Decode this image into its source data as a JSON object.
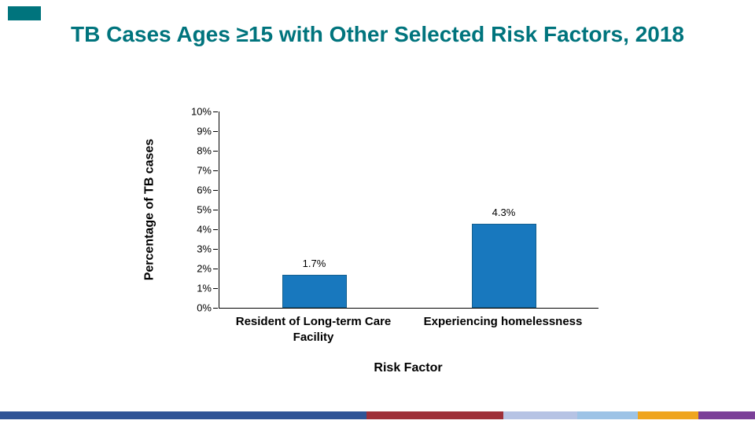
{
  "slide": {
    "title": "TB Cases Ages ≥15 with Other Selected Risk Factors, 2018"
  },
  "chart_data": {
    "type": "bar",
    "title": "TB Cases Ages ≥15 with Other Selected Risk Factors, 2018",
    "categories": [
      "Resident of Long-term Care Facility",
      "Experiencing homelessness"
    ],
    "values": [
      1.7,
      4.3
    ],
    "value_labels": [
      "1.7%",
      "4.3%"
    ],
    "xlabel": "Risk Factor",
    "ylabel": "Percentage of TB cases",
    "ylim": [
      0,
      10
    ],
    "y_ticks": [
      "0%",
      "1%",
      "2%",
      "3%",
      "4%",
      "5%",
      "6%",
      "7%",
      "8%",
      "9%",
      "10%"
    ],
    "grid": false,
    "legend": false,
    "bar_color": "#1878BE"
  },
  "theme": {
    "title_color": "#00747D",
    "accent_color": "#00747D",
    "footer_stripe": [
      {
        "color": "#2F5496",
        "width": 48.5
      },
      {
        "color": "#9E3039",
        "width": 18.2
      },
      {
        "color": "#B6C3E4",
        "width": 9.8
      },
      {
        "color": "#9DC3E6",
        "width": 8.0
      },
      {
        "color": "#EFA51F",
        "width": 8.0
      },
      {
        "color": "#7B3F98",
        "width": 7.5
      }
    ]
  }
}
